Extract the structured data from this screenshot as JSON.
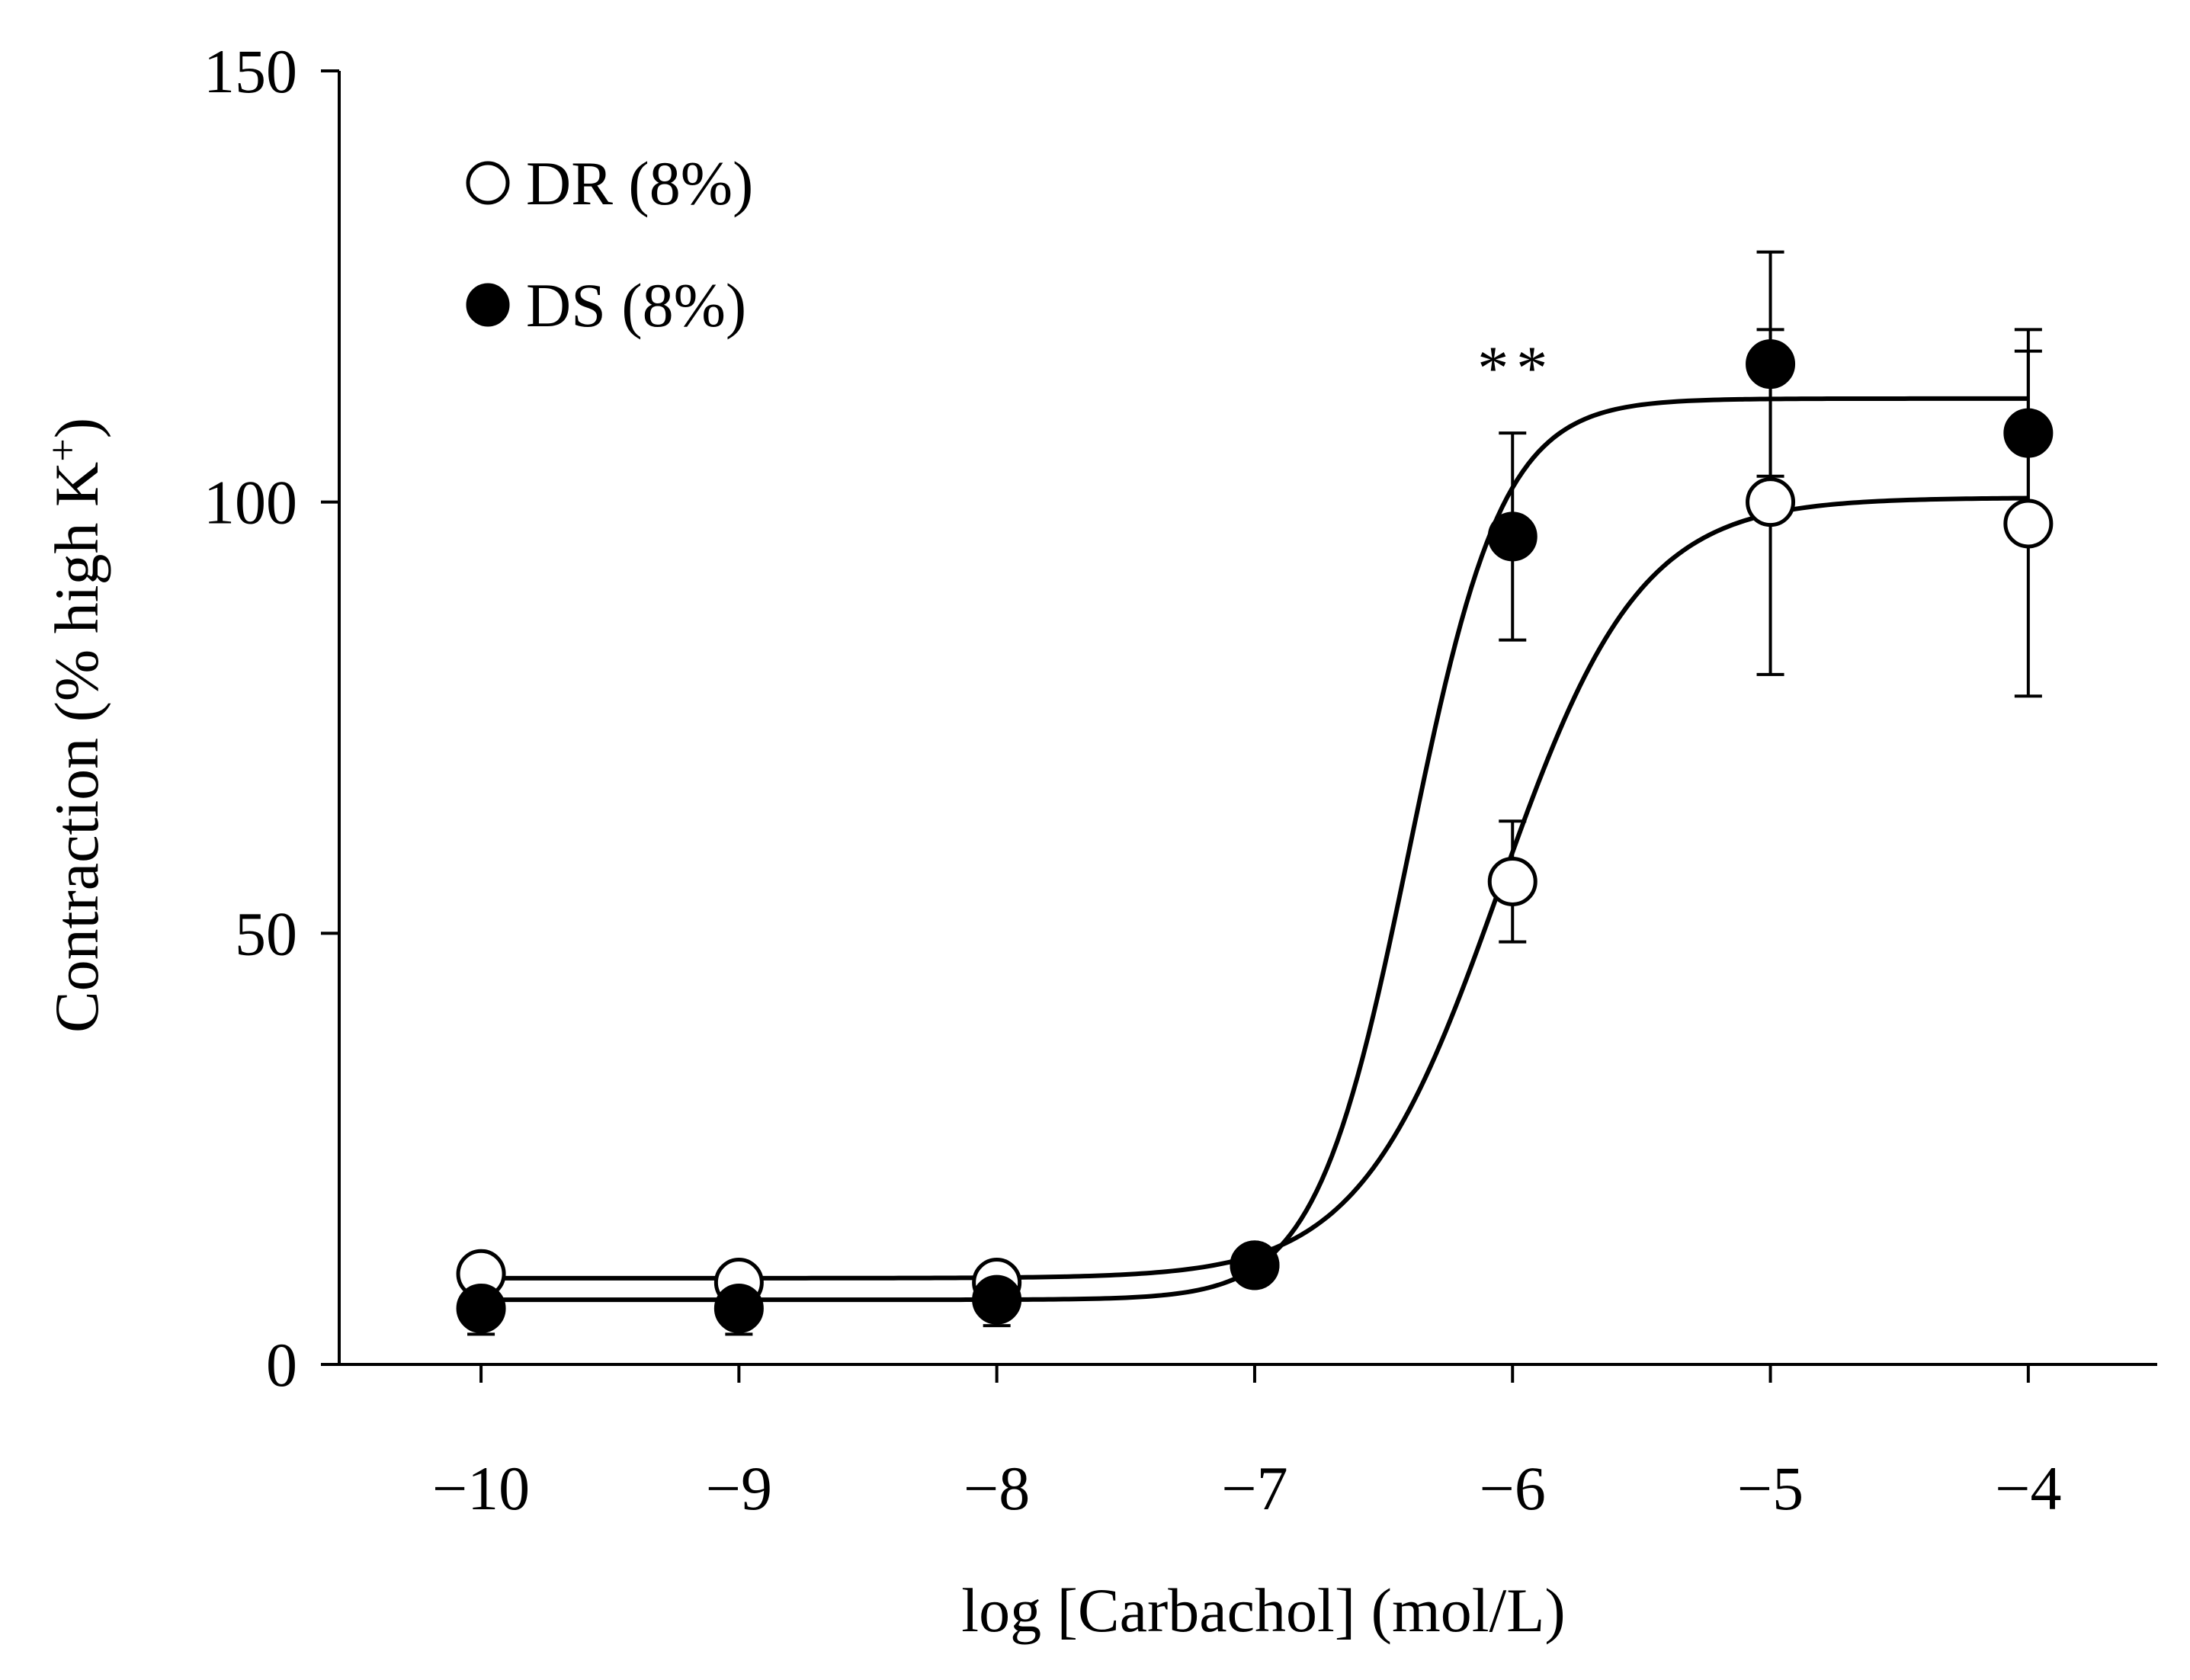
{
  "chart_data": {
    "type": "scatter",
    "title": "",
    "xlabel": "log [Carbachol] (mol/L)",
    "ylabel": "Contraction (% high K",
    "ylabel_sup": "+",
    "ylabel_close": ")",
    "xlim": [
      -10.55,
      -3.5
    ],
    "ylim": [
      0,
      150
    ],
    "xticks": [
      -10,
      -9,
      -8,
      -7,
      -6,
      -5,
      -4
    ],
    "xtick_labels": [
      "−10",
      "−9",
      "−8",
      "−7",
      "−6",
      "−5",
      "−4"
    ],
    "yticks": [
      0,
      50,
      100,
      150
    ],
    "ytick_labels": [
      "0",
      "50",
      "100",
      "150"
    ],
    "grid": false,
    "legend_position": "top-left",
    "series": [
      {
        "name": "DR (8%)",
        "marker": "open-circle",
        "x": [
          -10,
          -9,
          -8,
          -7,
          -6,
          -5,
          -4
        ],
        "values": [
          10.5,
          9.5,
          9.5,
          11.5,
          56,
          100,
          97.5
        ],
        "error": [
          0,
          0,
          0,
          0,
          7,
          20,
          20
        ],
        "fit": {
          "bottom": 10.0,
          "top": 100.5,
          "logEC50": -6.05,
          "hill": 1.6
        }
      },
      {
        "name": "DS (8%)",
        "marker": "filled-circle",
        "x": [
          -10,
          -9,
          -8,
          -7,
          -6,
          -5,
          -4
        ],
        "values": [
          6.5,
          6.5,
          7.5,
          11.5,
          96,
          116,
          108
        ],
        "error": [
          3,
          3,
          3,
          0,
          12,
          13,
          12
        ],
        "fit": {
          "bottom": 7.5,
          "top": 112,
          "logEC50": -6.4,
          "hill": 2.4
        }
      }
    ],
    "annotations": [
      {
        "text": "**",
        "x": -6,
        "y": 117
      }
    ]
  }
}
